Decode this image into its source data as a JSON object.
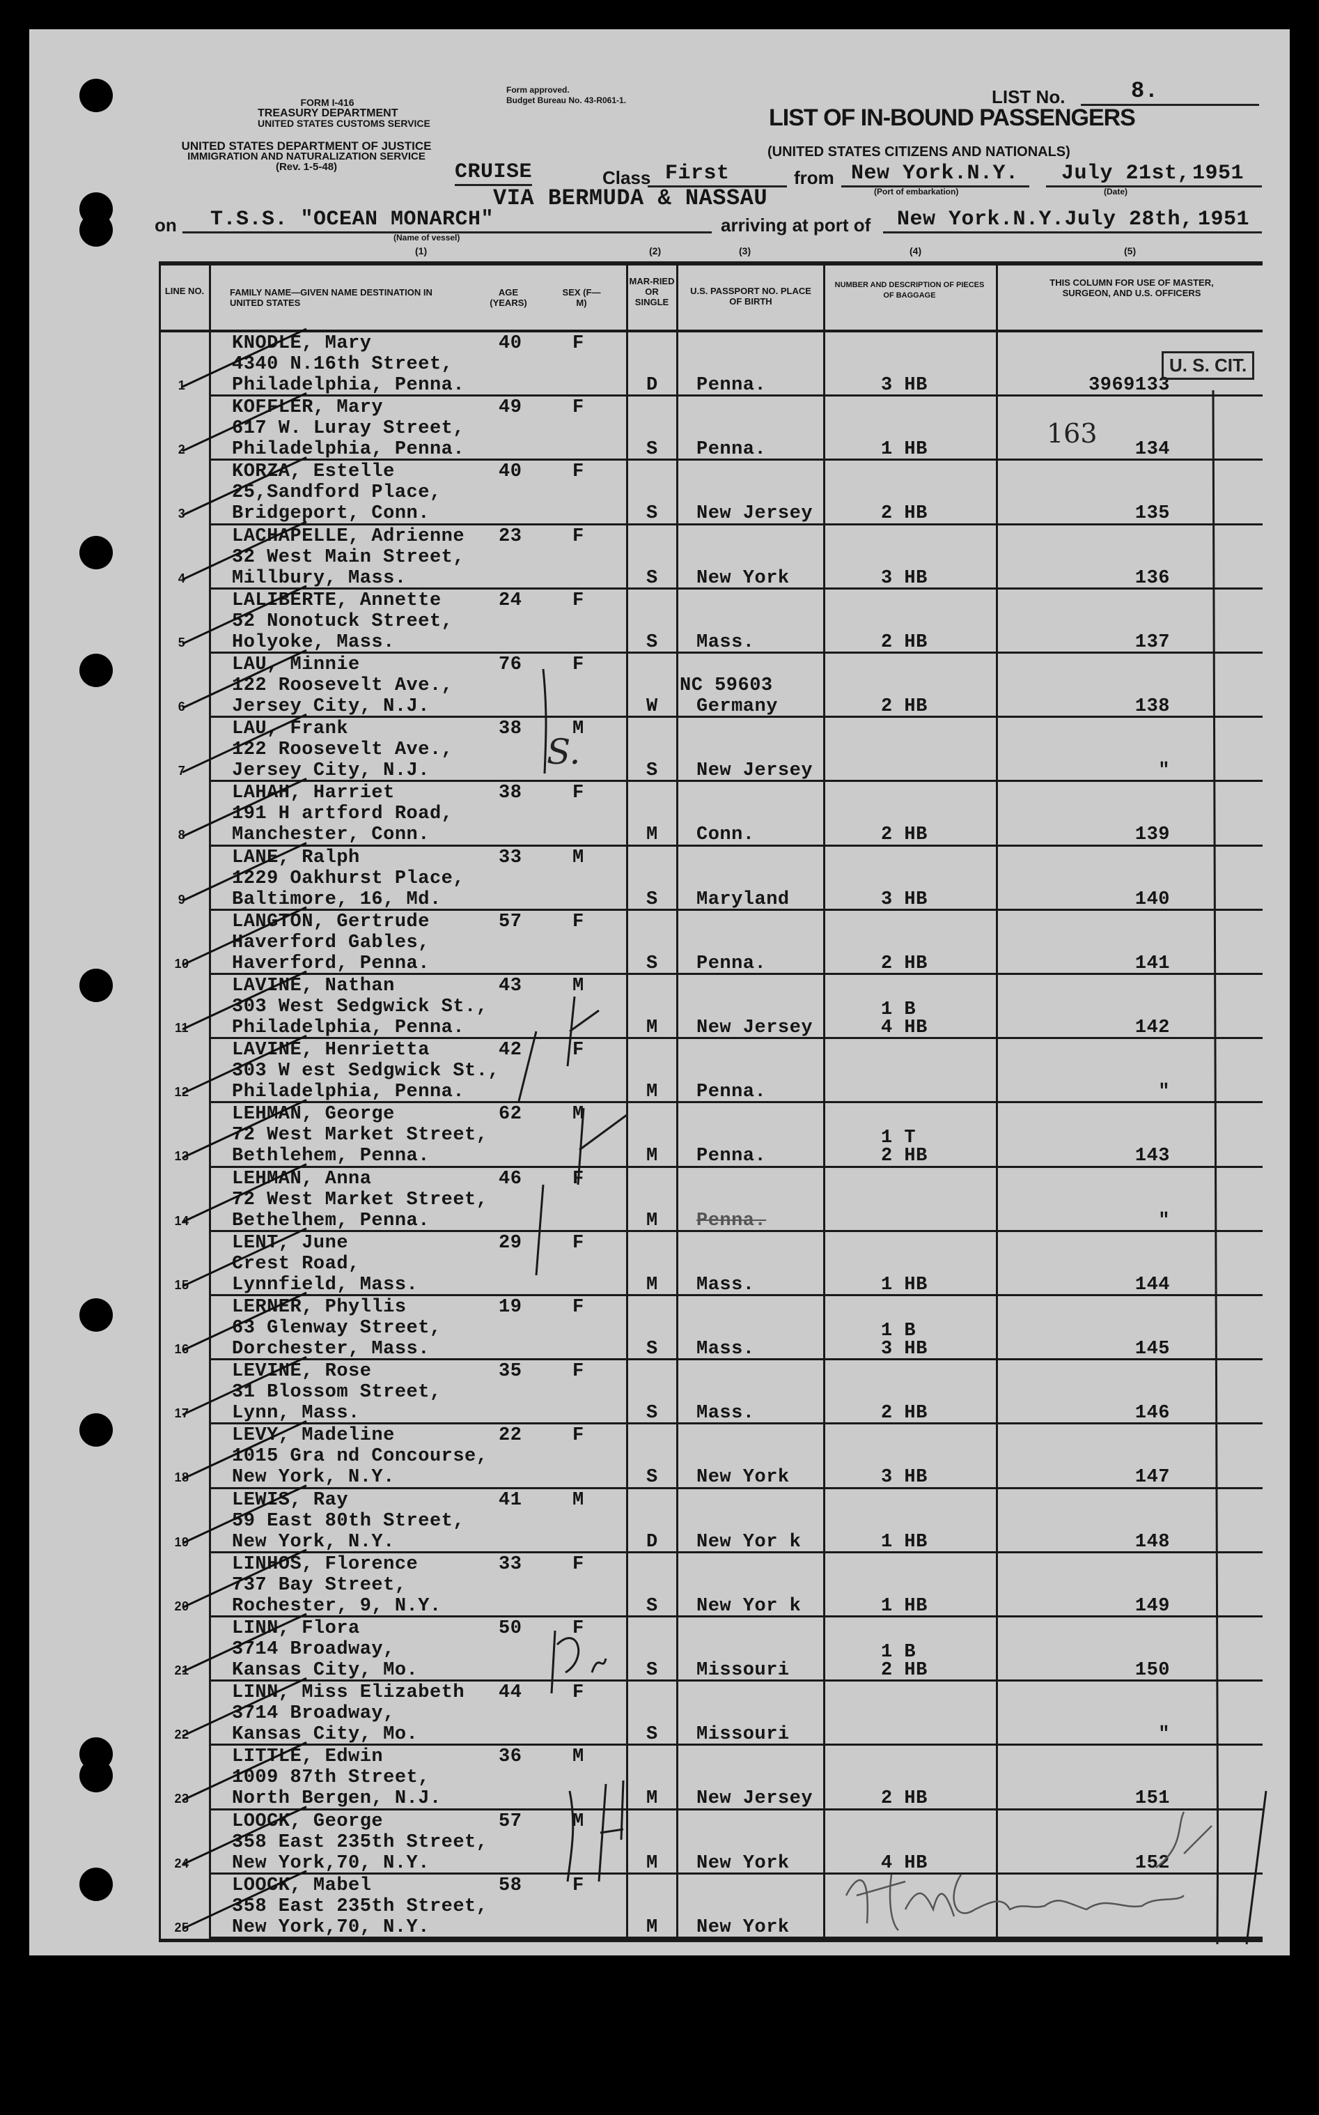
{
  "form": {
    "form_no": "Form I-416",
    "treasury": "TREASURY DEPARTMENT",
    "customs": "United States Customs Service",
    "justice": "UNITED STATES DEPARTMENT OF JUSTICE",
    "ins": "Immigration and Naturalization Service",
    "rev": "(Rev. 1-5-48)",
    "approved": "Form approved.",
    "budget": "Budget Bureau No. 43-R061-1.",
    "list_no_label": "LIST No.",
    "list_no": "8.",
    "title": "LIST OF IN-BOUND PASSENGERS",
    "subtitle": "(United States Citizens and Nationals)",
    "cruise": "CRUISE",
    "class_label": "Class",
    "class_value": "First",
    "from_label": "from",
    "from_value": "New York.N.Y.",
    "port_caption": "(Port of embarkation)",
    "date_value": "July 21st,",
    "date_caption": "(Date)",
    "year1": "1951",
    "via": "VIA BERMUDA &  NASSAU",
    "on_label": "on",
    "vessel": "T.S.S. \"OCEAN MONARCH\"",
    "vessel_caption": "(Name of vessel)",
    "arriving_label": "arriving at port of",
    "arriving_value": "New York.N.Y.July 28th,",
    "year2": "1951",
    "col_numbers": [
      "(1)",
      "(2)",
      "(3)",
      "(4)",
      "(5)"
    ]
  },
  "columns": {
    "line_no": "Line No.",
    "name": "Family Name—Given Name Destination in United States",
    "age": "Age (Years)",
    "sex": "Sex (F—M)",
    "married": "Mar-ried or Single",
    "passport": "U.S. Passport No. Place of Birth",
    "baggage": "Number and Description of Pieces of Baggage",
    "officers": "This Column for Use of Master, Surgeon, and U.S. Officers"
  },
  "stamp": "U. S. CIT.",
  "handwritten": {
    "r2_note": "163",
    "r7_note": "S."
  },
  "signature": "H.M. Gratham",
  "rows": [
    {
      "line": "1",
      "name": "KNODLE, Mary",
      "addr": "4340 N.16th Street,",
      "city": "Philadelphia, Penna.",
      "age": "40",
      "sex": "F",
      "married": "D",
      "passport": "",
      "birth": "Penna.",
      "baggage": [
        "3 HB"
      ],
      "officer": "3969133"
    },
    {
      "line": "2",
      "name": "KOFFLER, Mary",
      "addr": "617 W. Luray Street,",
      "city": "Philadelphia, Penna.",
      "age": "49",
      "sex": "F",
      "married": "S",
      "passport": "",
      "birth": "Penna.",
      "baggage": [
        "1 HB"
      ],
      "officer": "134"
    },
    {
      "line": "3",
      "name": "KORZA, Estelle",
      "addr": "25,Sandford Place,",
      "city": "Bridgeport, Conn.",
      "age": "40",
      "sex": "F",
      "married": "S",
      "passport": "",
      "birth": "New Jersey",
      "baggage": [
        "2 HB"
      ],
      "officer": "135"
    },
    {
      "line": "4",
      "name": "LACHAPELLE, Adrienne",
      "addr": "32 West Main Street,",
      "city": "Millbury, Mass.",
      "age": "23",
      "sex": "F",
      "married": "S",
      "passport": "",
      "birth": "New York",
      "baggage": [
        "3 HB"
      ],
      "officer": "136"
    },
    {
      "line": "5",
      "name": "LALIBERTE, Annette",
      "addr": "52 Nonotuck Street,",
      "city": "Holyoke, Mass.",
      "age": "24",
      "sex": "F",
      "married": "S",
      "passport": "",
      "birth": "Mass.",
      "baggage": [
        "2 HB"
      ],
      "officer": "137"
    },
    {
      "line": "6",
      "name": "LAU, Minnie",
      "addr": "122 Roosevelt Ave.,",
      "city": "Jersey City, N.J.",
      "age": "76",
      "sex": "F",
      "married": "W",
      "passport": "NC 59603",
      "birth": "Germany",
      "baggage": [
        "2 HB"
      ],
      "officer": "138"
    },
    {
      "line": "7",
      "name": "LAU, Frank",
      "addr": "122 Roosevelt Ave.,",
      "city": "Jersey City, N.J.",
      "age": "38",
      "sex": "M",
      "married": "S",
      "passport": "",
      "birth": "New Jersey",
      "baggage": [],
      "officer": "\""
    },
    {
      "line": "8",
      "name": "LAHAH, Harriet",
      "addr": "191 H artford Road,",
      "city": "Manchester, Conn.",
      "age": "38",
      "sex": "F",
      "married": "M",
      "passport": "",
      "birth": "Conn.",
      "baggage": [
        "2 HB"
      ],
      "officer": "139"
    },
    {
      "line": "9",
      "name": "LANE, Ralph",
      "addr": "1229 Oakhurst Place,",
      "city": "Baltimore, 16, Md.",
      "age": "33",
      "sex": "M",
      "married": "S",
      "passport": "",
      "birth": "Maryland",
      "baggage": [
        "3 HB"
      ],
      "officer": "140"
    },
    {
      "line": "10",
      "name": "LANGTON, Gertrude",
      "addr": "Haverford Gables,",
      "city": "Haverford, Penna.",
      "age": "57",
      "sex": "F",
      "married": "S",
      "passport": "",
      "birth": "Penna.",
      "baggage": [
        "2 HB"
      ],
      "officer": "141"
    },
    {
      "line": "11",
      "name": "LAVINE, Nathan",
      "addr": "303 West Sedgwick St.,",
      "city": "Philadelphia, Penna.",
      "age": "43",
      "sex": "M",
      "married": "M",
      "passport": "",
      "birth": "New Jersey",
      "baggage": [
        "1 B",
        "4 HB"
      ],
      "officer": "142"
    },
    {
      "line": "12",
      "name": "LAVINE, Henrietta",
      "addr": "303 W est Sedgwick St.,",
      "city": "Philadelphia, Penna.",
      "age": "42",
      "sex": "F",
      "married": "M",
      "passport": "",
      "birth": "Penna.",
      "baggage": [],
      "officer": "\""
    },
    {
      "line": "13",
      "name": "LEHMAN, George",
      "addr": "72 West Market Street,",
      "city": "Bethlehem, Penna.",
      "age": "62",
      "sex": "M",
      "married": "M",
      "passport": "",
      "birth": "Penna.",
      "baggage": [
        "1 T",
        "2 HB"
      ],
      "officer": "143"
    },
    {
      "line": "14",
      "name": "LEHMAN, Anna",
      "addr": "72 West Market Street,",
      "city": "Bethelhem, Penna.",
      "age": "46",
      "sex": "F",
      "married": "M",
      "passport": "",
      "birth": "Penna.",
      "baggage": [],
      "officer": "\""
    },
    {
      "line": "15",
      "name": "LENT, June",
      "addr": "Crest Road,",
      "city": "Lynnfield, Mass.",
      "age": "29",
      "sex": "F",
      "married": "M",
      "passport": "",
      "birth": "Mass.",
      "baggage": [
        "1 HB"
      ],
      "officer": "144"
    },
    {
      "line": "16",
      "name": "LERNER, Phyllis",
      "addr": "63 Glenway Street,",
      "city": "Dorchester, Mass.",
      "age": "19",
      "sex": "F",
      "married": "S",
      "passport": "",
      "birth": "Mass.",
      "baggage": [
        "1 B",
        "3 HB"
      ],
      "officer": "145"
    },
    {
      "line": "17",
      "name": "LEVINE, Rose",
      "addr": "31 Blossom Street,",
      "city": "Lynn, Mass.",
      "age": "35",
      "sex": "F",
      "married": "S",
      "passport": "",
      "birth": "Mass.",
      "baggage": [
        "2 HB"
      ],
      "officer": "146"
    },
    {
      "line": "18",
      "name": "LEVY, Madeline",
      "addr": "1015 Gra nd Concourse,",
      "city": "New York, N.Y.",
      "age": "22",
      "sex": "F",
      "married": "S",
      "passport": "",
      "birth": "New York",
      "baggage": [
        "3 HB"
      ],
      "officer": "147"
    },
    {
      "line": "19",
      "name": "LEWIS, Ray",
      "addr": "59 East 80th Street,",
      "city": "New York, N.Y.",
      "age": "41",
      "sex": "M",
      "married": "D",
      "passport": "",
      "birth": "New Yor k",
      "baggage": [
        "1 HB"
      ],
      "officer": "148"
    },
    {
      "line": "20",
      "name": "LINHOS, Florence",
      "addr": "737 Bay Street,",
      "city": "Rochester, 9, N.Y.",
      "age": "33",
      "sex": "F",
      "married": "S",
      "passport": "",
      "birth": "New Yor k",
      "baggage": [
        "1 HB"
      ],
      "officer": "149"
    },
    {
      "line": "21",
      "name": "LINN, Flora",
      "addr": "3714 Broadway,",
      "city": "Kansas City, Mo.",
      "age": "50",
      "sex": "F",
      "married": "S",
      "passport": "",
      "birth": "Missouri",
      "baggage": [
        "1 B",
        "2 HB"
      ],
      "officer": "150"
    },
    {
      "line": "22",
      "name": "LINN, Miss Elizabeth",
      "addr": "3714 Broadway,",
      "city": "Kansas City, Mo.",
      "age": "44",
      "sex": "F",
      "married": "S",
      "passport": "",
      "birth": "Missouri",
      "baggage": [],
      "officer": "\""
    },
    {
      "line": "23",
      "name": "LITTLE, Edwin",
      "addr": "1009 87th Street,",
      "city": "North Bergen, N.J.",
      "age": "36",
      "sex": "M",
      "married": "M",
      "passport": "",
      "birth": "New Jersey",
      "baggage": [
        "2 HB"
      ],
      "officer": "151"
    },
    {
      "line": "24",
      "name": "LOOCK, George",
      "addr": "358 East 235th Street,",
      "city": "New York,70, N.Y.",
      "age": "57",
      "sex": "M",
      "married": "M",
      "passport": "",
      "birth": "New York",
      "baggage": [
        "4 HB"
      ],
      "officer": "152"
    },
    {
      "line": "25",
      "name": "LOOCK, Mabel",
      "addr": "358 East 235th Street,",
      "city": "New York,70, N.Y.",
      "age": "58",
      "sex": "F",
      "married": "M",
      "passport": "",
      "birth": "New York",
      "baggage": [],
      "officer": ""
    }
  ]
}
